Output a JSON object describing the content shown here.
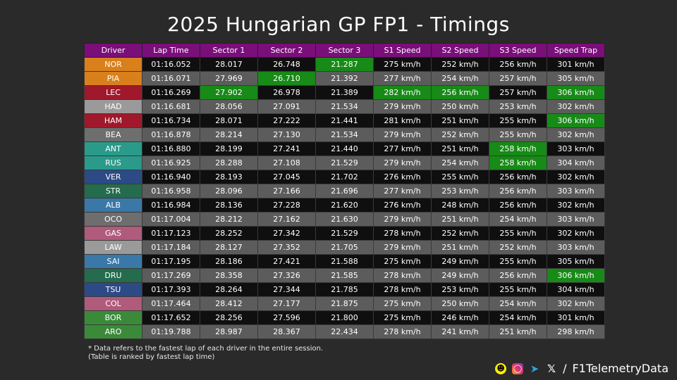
{
  "title": "2025 Hungarian GP FP1 - Timings",
  "watermark": "F1TelemetryData",
  "columns": [
    "Driver",
    "Lap Time",
    "Sector 1",
    "Sector 2",
    "Sector 3",
    "S1 Speed",
    "S2 Speed",
    "S3 Speed",
    "Speed Trap"
  ],
  "rows": [
    {
      "driver": "NOR",
      "color": "#d9801c",
      "lap": "01:16.052",
      "s1": "28.017",
      "s2": "26.748",
      "s3": "21.287",
      "sp1": "275 km/h",
      "sp2": "252 km/h",
      "sp3": "256 km/h",
      "trap": "301 km/h",
      "best": [
        "s3"
      ]
    },
    {
      "driver": "PIA",
      "color": "#d9801c",
      "lap": "01:16.071",
      "s1": "27.969",
      "s2": "26.710",
      "s3": "21.392",
      "sp1": "277 km/h",
      "sp2": "254 km/h",
      "sp3": "257 km/h",
      "trap": "305 km/h",
      "best": [
        "s2"
      ]
    },
    {
      "driver": "LEC",
      "color": "#a0182b",
      "lap": "01:16.269",
      "s1": "27.902",
      "s2": "26.978",
      "s3": "21.389",
      "sp1": "282 km/h",
      "sp2": "256 km/h",
      "sp3": "257 km/h",
      "trap": "306 km/h",
      "best": [
        "s1",
        "sp1",
        "sp2",
        "trap"
      ]
    },
    {
      "driver": "HAD",
      "color": "#9a9a9a",
      "lap": "01:16.681",
      "s1": "28.056",
      "s2": "27.091",
      "s3": "21.534",
      "sp1": "279 km/h",
      "sp2": "250 km/h",
      "sp3": "253 km/h",
      "trap": "302 km/h",
      "best": []
    },
    {
      "driver": "HAM",
      "color": "#a0182b",
      "lap": "01:16.734",
      "s1": "28.071",
      "s2": "27.222",
      "s3": "21.441",
      "sp1": "281 km/h",
      "sp2": "251 km/h",
      "sp3": "255 km/h",
      "trap": "306 km/h",
      "best": [
        "trap"
      ]
    },
    {
      "driver": "BEA",
      "color": "#6e6e6e",
      "lap": "01:16.878",
      "s1": "28.214",
      "s2": "27.130",
      "s3": "21.534",
      "sp1": "279 km/h",
      "sp2": "252 km/h",
      "sp3": "255 km/h",
      "trap": "302 km/h",
      "best": []
    },
    {
      "driver": "ANT",
      "color": "#2a9a8a",
      "lap": "01:16.880",
      "s1": "28.199",
      "s2": "27.241",
      "s3": "21.440",
      "sp1": "277 km/h",
      "sp2": "251 km/h",
      "sp3": "258 km/h",
      "trap": "303 km/h",
      "best": [
        "sp3"
      ]
    },
    {
      "driver": "RUS",
      "color": "#2a9a8a",
      "lap": "01:16.925",
      "s1": "28.288",
      "s2": "27.108",
      "s3": "21.529",
      "sp1": "279 km/h",
      "sp2": "254 km/h",
      "sp3": "258 km/h",
      "trap": "304 km/h",
      "best": [
        "sp3"
      ]
    },
    {
      "driver": "VER",
      "color": "#2b4a86",
      "lap": "01:16.940",
      "s1": "28.193",
      "s2": "27.045",
      "s3": "21.702",
      "sp1": "276 km/h",
      "sp2": "255 km/h",
      "sp3": "256 km/h",
      "trap": "302 km/h",
      "best": []
    },
    {
      "driver": "STR",
      "color": "#256b4e",
      "lap": "01:16.958",
      "s1": "28.096",
      "s2": "27.166",
      "s3": "21.696",
      "sp1": "277 km/h",
      "sp2": "253 km/h",
      "sp3": "256 km/h",
      "trap": "303 km/h",
      "best": []
    },
    {
      "driver": "ALB",
      "color": "#3a78a8",
      "lap": "01:16.984",
      "s1": "28.136",
      "s2": "27.228",
      "s3": "21.620",
      "sp1": "276 km/h",
      "sp2": "248 km/h",
      "sp3": "256 km/h",
      "trap": "302 km/h",
      "best": []
    },
    {
      "driver": "OCO",
      "color": "#6e6e6e",
      "lap": "01:17.004",
      "s1": "28.212",
      "s2": "27.162",
      "s3": "21.630",
      "sp1": "279 km/h",
      "sp2": "251 km/h",
      "sp3": "254 km/h",
      "trap": "303 km/h",
      "best": []
    },
    {
      "driver": "GAS",
      "color": "#b05a7c",
      "lap": "01:17.123",
      "s1": "28.252",
      "s2": "27.342",
      "s3": "21.529",
      "sp1": "278 km/h",
      "sp2": "252 km/h",
      "sp3": "255 km/h",
      "trap": "302 km/h",
      "best": []
    },
    {
      "driver": "LAW",
      "color": "#9a9a9a",
      "lap": "01:17.184",
      "s1": "28.127",
      "s2": "27.352",
      "s3": "21.705",
      "sp1": "279 km/h",
      "sp2": "251 km/h",
      "sp3": "252 km/h",
      "trap": "303 km/h",
      "best": []
    },
    {
      "driver": "SAI",
      "color": "#3a78a8",
      "lap": "01:17.195",
      "s1": "28.186",
      "s2": "27.421",
      "s3": "21.588",
      "sp1": "275 km/h",
      "sp2": "249 km/h",
      "sp3": "255 km/h",
      "trap": "305 km/h",
      "best": []
    },
    {
      "driver": "DRU",
      "color": "#256b4e",
      "lap": "01:17.269",
      "s1": "28.358",
      "s2": "27.326",
      "s3": "21.585",
      "sp1": "278 km/h",
      "sp2": "249 km/h",
      "sp3": "256 km/h",
      "trap": "306 km/h",
      "best": [
        "trap"
      ]
    },
    {
      "driver": "TSU",
      "color": "#2b4a86",
      "lap": "01:17.393",
      "s1": "28.264",
      "s2": "27.344",
      "s3": "21.785",
      "sp1": "278 km/h",
      "sp2": "253 km/h",
      "sp3": "255 km/h",
      "trap": "304 km/h",
      "best": []
    },
    {
      "driver": "COL",
      "color": "#b05a7c",
      "lap": "01:17.464",
      "s1": "28.412",
      "s2": "27.177",
      "s3": "21.875",
      "sp1": "275 km/h",
      "sp2": "250 km/h",
      "sp3": "254 km/h",
      "trap": "302 km/h",
      "best": []
    },
    {
      "driver": "BOR",
      "color": "#3a8a3a",
      "lap": "01:17.652",
      "s1": "28.256",
      "s2": "27.596",
      "s3": "21.800",
      "sp1": "275 km/h",
      "sp2": "246 km/h",
      "sp3": "254 km/h",
      "trap": "301 km/h",
      "best": []
    },
    {
      "driver": "ARO",
      "color": "#3a8a3a",
      "lap": "01:19.788",
      "s1": "28.987",
      "s2": "28.367",
      "s3": "22.434",
      "sp1": "278 km/h",
      "sp2": "241 km/h",
      "sp3": "251 km/h",
      "trap": "298 km/h",
      "best": []
    }
  ],
  "best_color": "#178a17",
  "footnote": {
    "line1": "* Data refers to the fastest lap of each driver in the entire session.",
    "line2": "(Table is ranked by fastest lap time)"
  },
  "social": {
    "icons": [
      "snapchat-icon",
      "instagram-icon",
      "telegram-icon",
      "x-icon"
    ],
    "separator": "/",
    "handle": "F1TelemetryData"
  }
}
